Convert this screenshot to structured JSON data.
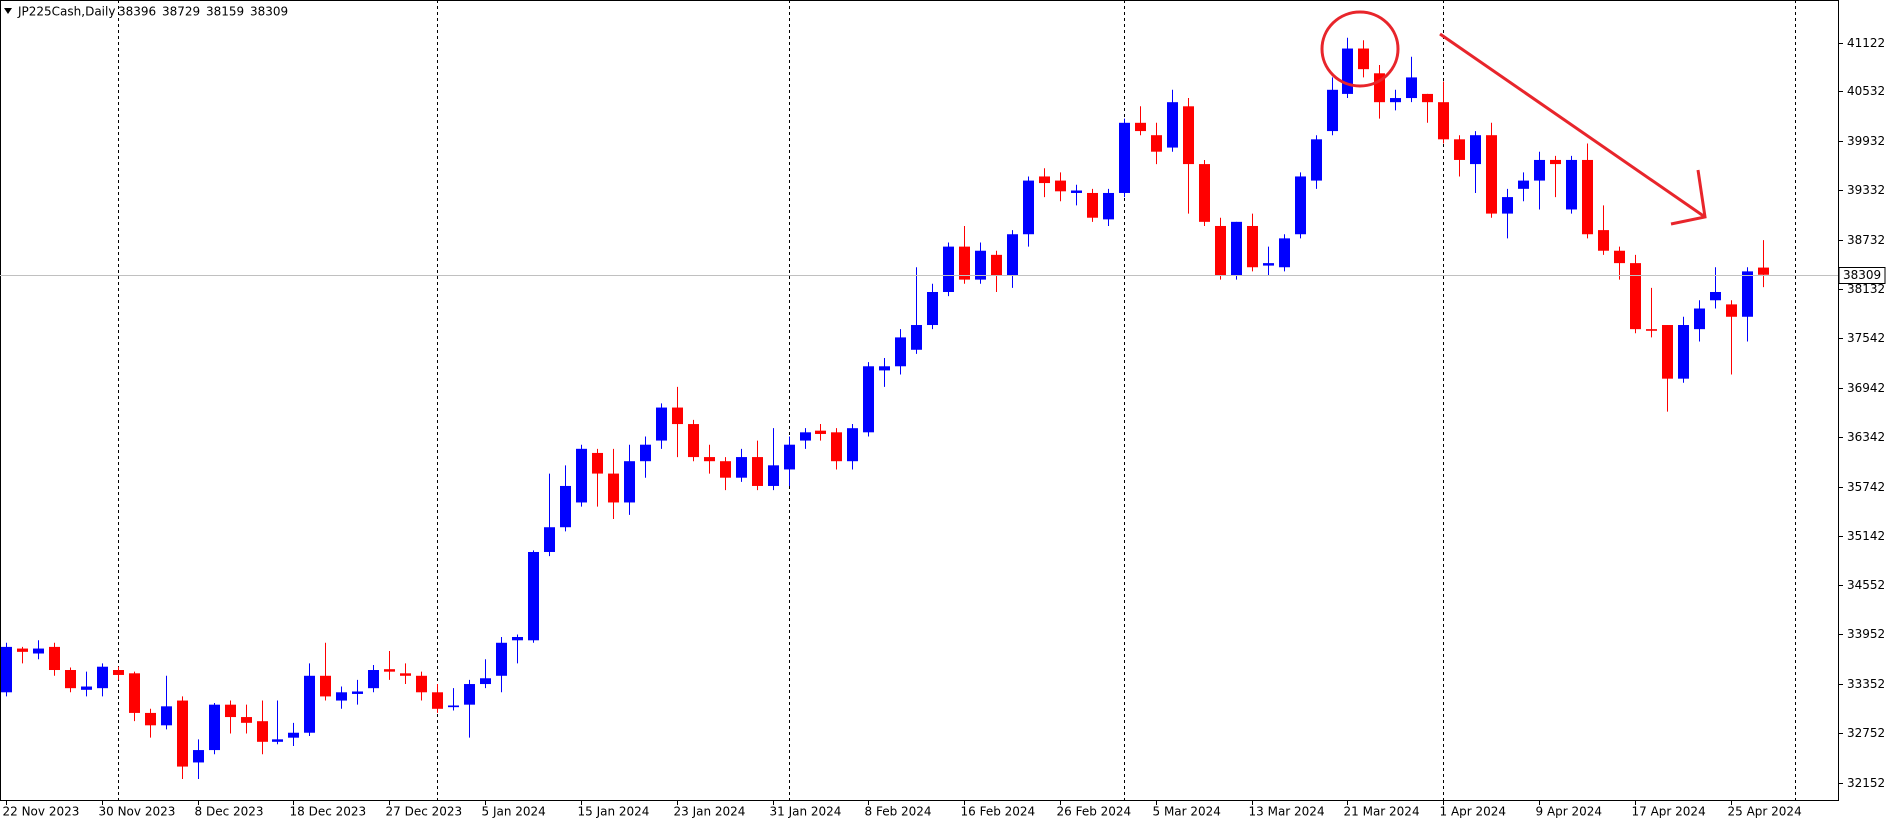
{
  "chart_data": {
    "type": "candlestick",
    "title": "JP225Cash,Daily",
    "categories": [
      "22 Nov 2023",
      null,
      null,
      null,
      null,
      null,
      "30 Nov 2023",
      null,
      null,
      null,
      null,
      null,
      "8 Dec 2023",
      null,
      null,
      null,
      null,
      null,
      "18 Dec 2023",
      null,
      null,
      null,
      null,
      null,
      "27 Dec 2023",
      null,
      null,
      null,
      null,
      null,
      "5 Jan 2024",
      null,
      null,
      null,
      null,
      null,
      "15 Jan 2024",
      null,
      null,
      null,
      null,
      null,
      "23 Jan 2024",
      null,
      null,
      null,
      null,
      null,
      "31 Jan 2024",
      null,
      null,
      null,
      null,
      null,
      "8 Feb 2024",
      null,
      null,
      null,
      null,
      null,
      "16 Feb 2024",
      null,
      null,
      null,
      null,
      null,
      "26 Feb 2024",
      null,
      null,
      null,
      null,
      null,
      "5 Mar 2024",
      null,
      null,
      null,
      null,
      null,
      "13 Mar 2024",
      null,
      null,
      null,
      null,
      null,
      "21 Mar 2024",
      null,
      null,
      null,
      null,
      null,
      "1 Apr 2024",
      null,
      null,
      null,
      null,
      null,
      "9 Apr 2024",
      null,
      null,
      null,
      null,
      null,
      "17 Apr 2024",
      null,
      null,
      null,
      null,
      null,
      "25 Apr 2024",
      null,
      null
    ],
    "open": [
      33250,
      33780,
      33720,
      33800,
      33520,
      33280,
      33300,
      33520,
      33480,
      33000,
      32850,
      33150,
      32400,
      32550,
      33100,
      32950,
      32900,
      32650,
      32700,
      32760,
      33450,
      33150,
      33230,
      33300,
      33530,
      33480,
      33450,
      33250,
      33070,
      33100,
      33350,
      33450,
      33880,
      33880,
      34950,
      35250,
      35550,
      36150,
      35900,
      35550,
      36050,
      36300,
      36700,
      36500,
      36100,
      36050,
      35850,
      36100,
      35750,
      35950,
      36300,
      36420,
      36400,
      36050,
      36400,
      37150,
      37200,
      37400,
      37700,
      38100,
      38650,
      38250,
      38550,
      38300,
      38800,
      39500,
      39450,
      39300,
      39300,
      38980,
      39300,
      40150,
      40000,
      39850,
      40350,
      39650,
      38900,
      38300,
      38900,
      38420,
      38400,
      38800,
      39450,
      40050,
      40500,
      41050,
      40750,
      40400,
      40450,
      40500,
      40400,
      39950,
      39650,
      40000,
      39050,
      39350,
      39450,
      39700,
      39100,
      39700,
      38850,
      38600,
      38450,
      37650,
      37700,
      37050,
      37650,
      38000,
      37950,
      37800,
      38396
    ],
    "high": [
      33850,
      33800,
      33880,
      33850,
      33550,
      33500,
      33600,
      33560,
      33500,
      33050,
      33450,
      33200,
      32680,
      33120,
      33150,
      33100,
      33150,
      33150,
      32880,
      33600,
      33850,
      33320,
      33400,
      33580,
      33750,
      33600,
      33500,
      33350,
      33300,
      33400,
      33650,
      33920,
      33950,
      34970,
      35900,
      36000,
      36250,
      36200,
      36200,
      36250,
      36350,
      36750,
      36950,
      36550,
      36250,
      36100,
      36200,
      36300,
      36450,
      36350,
      36450,
      36500,
      36450,
      36500,
      37250,
      37300,
      37650,
      38400,
      38200,
      38700,
      38900,
      38700,
      38600,
      38850,
      39500,
      39600,
      39550,
      39400,
      39350,
      39350,
      40200,
      40350,
      40150,
      40550,
      40450,
      39700,
      39000,
      38950,
      39050,
      38650,
      38800,
      39550,
      40000,
      40700,
      41180,
      41150,
      40850,
      40550,
      40950,
      40500,
      40650,
      40000,
      40050,
      40150,
      39350,
      39550,
      39800,
      39750,
      39750,
      39900,
      39150,
      38650,
      38550,
      38150,
      37700,
      37800,
      38000,
      38400,
      38000,
      38400,
      38729
    ],
    "low": [
      33200,
      33600,
      33650,
      33450,
      33250,
      33200,
      33200,
      33400,
      32900,
      32700,
      32800,
      32200,
      32200,
      32500,
      32750,
      32750,
      32500,
      32620,
      32600,
      32720,
      33150,
      33050,
      33100,
      33250,
      33400,
      33350,
      33150,
      33000,
      33030,
      32700,
      33300,
      33250,
      33600,
      33850,
      34900,
      35200,
      35500,
      35500,
      35350,
      35400,
      35850,
      36200,
      36100,
      36050,
      35900,
      35700,
      35800,
      35700,
      35700,
      35750,
      36200,
      36300,
      35950,
      35950,
      36350,
      36950,
      37100,
      37350,
      37650,
      38050,
      38200,
      38200,
      38100,
      38150,
      38650,
      39250,
      39200,
      39150,
      38950,
      38900,
      39250,
      40000,
      39650,
      39800,
      39050,
      38900,
      38250,
      38250,
      38350,
      38300,
      38350,
      38750,
      39350,
      40000,
      40450,
      40700,
      40200,
      40300,
      40400,
      40150,
      39900,
      39500,
      39300,
      39000,
      38750,
      39200,
      39100,
      39250,
      39050,
      38750,
      38550,
      38250,
      37600,
      37550,
      36650,
      37000,
      37500,
      37900,
      37100,
      37500,
      38159
    ],
    "close": [
      33800,
      33740,
      33780,
      33520,
      33300,
      33320,
      33560,
      33460,
      33000,
      32850,
      33080,
      32350,
      32550,
      33100,
      32950,
      32880,
      32650,
      32680,
      32760,
      33450,
      33200,
      33250,
      33260,
      33520,
      33500,
      33450,
      33250,
      33050,
      33090,
      33350,
      33420,
      33850,
      33920,
      34950,
      35250,
      35750,
      36200,
      35900,
      35550,
      36050,
      36250,
      36700,
      36500,
      36100,
      36050,
      35850,
      36100,
      35750,
      36000,
      36250,
      36400,
      36380,
      36050,
      36450,
      37200,
      37200,
      37550,
      37700,
      38100,
      38650,
      38250,
      38600,
      38300,
      38800,
      39450,
      39420,
      39320,
      39330,
      39000,
      39300,
      40150,
      40050,
      39800,
      40400,
      39650,
      38950,
      38300,
      38950,
      38400,
      38450,
      38750,
      39500,
      39950,
      40550,
      41050,
      40800,
      40400,
      40450,
      40700,
      40400,
      39950,
      39700,
      40000,
      39050,
      39250,
      39450,
      39700,
      39650,
      39700,
      38800,
      38600,
      38450,
      37650,
      37630,
      37050,
      37700,
      37900,
      38100,
      37800,
      38350,
      38309
    ],
    "up_color": "#0000ff",
    "down_color": "#ff0000",
    "ylim": [
      31945,
      41638
    ],
    "yticks": [
      41122,
      40532,
      39932,
      39332,
      38732,
      38132,
      37542,
      36942,
      36342,
      35742,
      35142,
      34552,
      33952,
      33352,
      32752,
      32152
    ],
    "grid": false
  }
}
